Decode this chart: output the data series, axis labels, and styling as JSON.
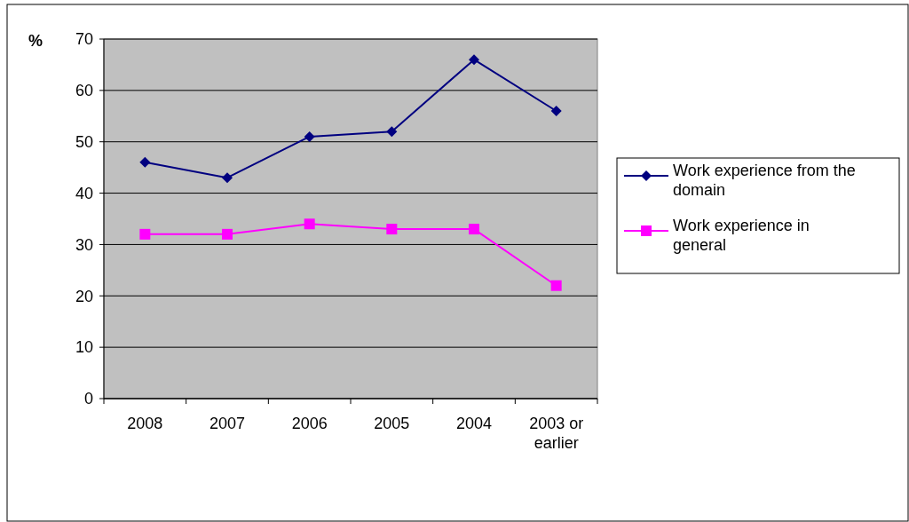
{
  "chart_data": {
    "type": "line",
    "ylabel": "%",
    "categories": [
      "2008",
      "2007",
      "2006",
      "2005",
      "2004",
      "2003 or earlier"
    ],
    "series": [
      {
        "name": "Work experience from the domain",
        "color": "#000080",
        "marker": "diamond",
        "values": [
          46,
          43,
          51,
          52,
          66,
          56
        ]
      },
      {
        "name": "Work experience in general",
        "color": "#ff00ff",
        "marker": "square",
        "values": [
          32,
          32,
          34,
          33,
          33,
          22
        ]
      }
    ],
    "ylim": [
      0,
      70
    ],
    "yticks": [
      0,
      10,
      20,
      30,
      40,
      50,
      60,
      70
    ],
    "grid": "y",
    "legend": "right"
  }
}
